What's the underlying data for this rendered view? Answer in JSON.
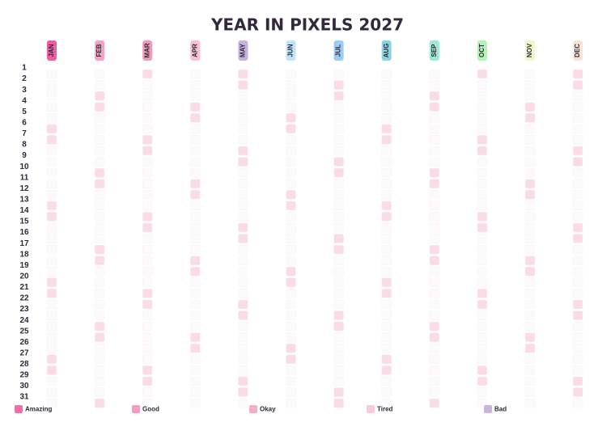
{
  "header": {
    "title": "YEAR IN PIXELS 2027"
  },
  "months": [
    {
      "label": "JAN",
      "color": "#e9609f"
    },
    {
      "label": "FEB",
      "color": "#f3a3c4"
    },
    {
      "label": "MAR",
      "color": "#f19ab7"
    },
    {
      "label": "APR",
      "color": "#f6c2d4"
    },
    {
      "label": "MAY",
      "color": "#c6b2dc"
    },
    {
      "label": "JUN",
      "color": "#c3e2f7"
    },
    {
      "label": "JUL",
      "color": "#9ecbf1"
    },
    {
      "label": "AUG",
      "color": "#8dd3df"
    },
    {
      "label": "SEP",
      "color": "#9ee9d1"
    },
    {
      "label": "OCT",
      "color": "#b6f1b6"
    },
    {
      "label": "NOV",
      "color": "#eff7c9"
    },
    {
      "label": "DEC",
      "color": "#f7e4d4"
    }
  ],
  "days": [
    1,
    2,
    3,
    4,
    5,
    6,
    7,
    8,
    9,
    10,
    11,
    12,
    13,
    14,
    15,
    16,
    17,
    18,
    19,
    20,
    21,
    22,
    23,
    24,
    25,
    26,
    27,
    28,
    29,
    30,
    31
  ],
  "legend": [
    {
      "label": "Amazing",
      "color": "#f06fa5"
    },
    {
      "label": "Good",
      "color": "#f39cbf"
    },
    {
      "label": "Okay",
      "color": "#f5adc8"
    },
    {
      "label": "Tired",
      "color": "#f8cadb"
    },
    {
      "label": "Bad",
      "color": "#c8b6da"
    }
  ]
}
